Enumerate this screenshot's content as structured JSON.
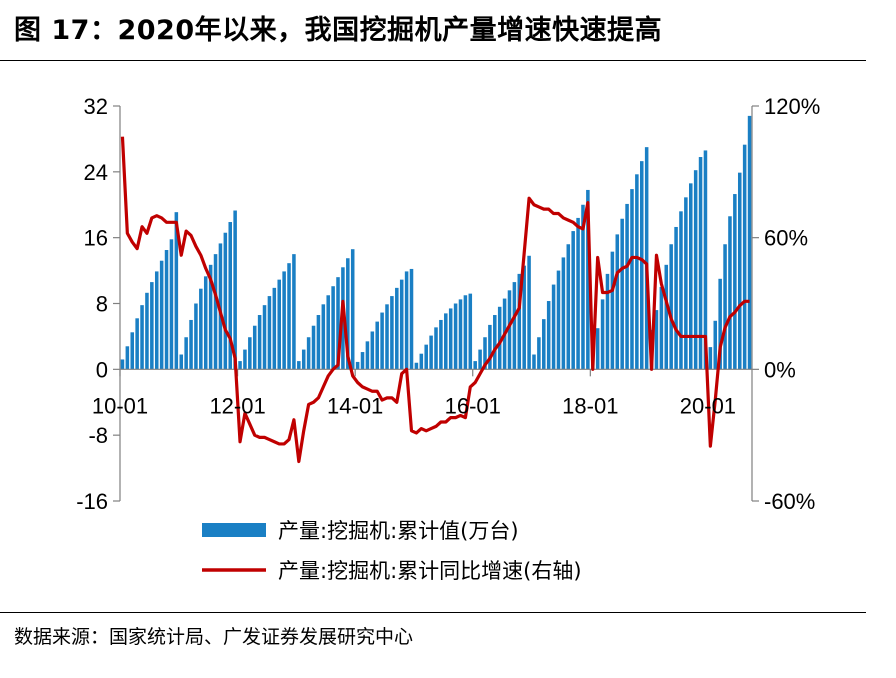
{
  "title": "图 17：2020年以来，我国挖掘机产量增速快速提高",
  "source": "数据来源：国家统计局、广发证券发展研究中心",
  "colors": {
    "bar": "#1a7fc4",
    "line": "#c00000",
    "axis": "#808080"
  },
  "chart_data": {
    "type": "bar+line",
    "x_tick_labels": [
      "10-01",
      "12-01",
      "14-01",
      "16-01",
      "18-01",
      "20-01"
    ],
    "left_axis": {
      "ylim": [
        -16,
        32
      ],
      "ticks": [
        -16,
        -8,
        0,
        8,
        16,
        24,
        32
      ],
      "tick_labels": [
        "-16",
        "-8",
        "0",
        "8",
        "16",
        "24",
        "32"
      ]
    },
    "right_axis": {
      "ylim": [
        -60,
        120
      ],
      "ticks": [
        -60,
        0,
        60,
        120
      ],
      "tick_labels": [
        "-60%",
        "0%",
        "60%",
        "120%"
      ]
    },
    "series": [
      {
        "name": "产量:挖掘机:累计值(万台)",
        "type": "bar",
        "axis": "left",
        "values": [
          1.2,
          2.8,
          4.5,
          6.2,
          7.8,
          9.3,
          10.6,
          11.9,
          13.2,
          14.5,
          15.8,
          19.1,
          1.8,
          3.9,
          6.0,
          8.0,
          9.8,
          11.3,
          12.7,
          14.0,
          15.3,
          16.6,
          17.9,
          19.3,
          1.0,
          2.4,
          3.9,
          5.3,
          6.6,
          7.8,
          8.9,
          9.9,
          10.9,
          11.9,
          12.9,
          14.0,
          1.0,
          2.4,
          3.9,
          5.3,
          6.6,
          7.9,
          9.0,
          10.1,
          11.2,
          12.4,
          13.5,
          14.6,
          0.9,
          2.1,
          3.4,
          4.6,
          5.8,
          6.9,
          7.9,
          8.9,
          9.9,
          10.9,
          11.9,
          12.2,
          0.8,
          1.9,
          3.0,
          4.1,
          5.1,
          6.0,
          6.8,
          7.4,
          8.0,
          8.5,
          9.0,
          9.2,
          1.0,
          2.4,
          3.9,
          5.4,
          6.6,
          7.6,
          8.6,
          9.6,
          10.6,
          11.6,
          12.6,
          13.8,
          1.8,
          3.9,
          6.1,
          8.3,
          10.3,
          12.0,
          13.6,
          15.2,
          16.8,
          18.4,
          20.0,
          21.8,
          2.0,
          5.0,
          8.5,
          11.6,
          14.3,
          16.4,
          18.3,
          20.1,
          21.9,
          23.7,
          25.3,
          27.0,
          4.8,
          7.2,
          10.0,
          12.7,
          15.2,
          17.3,
          19.2,
          20.9,
          22.6,
          24.2,
          25.8,
          26.6,
          2.7,
          5.9,
          11.0,
          15.2,
          18.6,
          21.3,
          23.9,
          27.3,
          30.8
        ]
      },
      {
        "name": "产量:挖掘机:累计同比增速(右轴)",
        "type": "line",
        "axis": "right",
        "values": [
          106,
          62,
          58,
          55,
          65,
          62,
          69,
          70,
          69,
          67,
          67,
          67,
          52,
          63,
          61,
          56,
          52,
          46,
          41,
          34,
          26,
          18,
          14,
          5,
          -33,
          -20,
          -25,
          -30,
          -31,
          -31,
          -32,
          -33,
          -34,
          -34,
          -32,
          -23,
          -42,
          -28,
          -16,
          -15,
          -13,
          -8,
          -3,
          0,
          2,
          31,
          6,
          -3,
          -6,
          -8,
          -9,
          -10,
          -10,
          -14,
          -13,
          -13,
          -15,
          -2,
          0,
          -28,
          -29,
          -27,
          -28,
          -27,
          -26,
          -24,
          -24,
          -22,
          -22,
          -21,
          -22,
          -8,
          -6,
          -2,
          2,
          5,
          9,
          12,
          16,
          20,
          24,
          28,
          53,
          78,
          75,
          74,
          73,
          73,
          71,
          71,
          69,
          68,
          67,
          65,
          64,
          76,
          0,
          51,
          35,
          35,
          36,
          44,
          46,
          47,
          51,
          51,
          50,
          48,
          0,
          52,
          39,
          31,
          23,
          18,
          15,
          15,
          15,
          15,
          15,
          15,
          -35,
          -14,
          10,
          19,
          24,
          26,
          29,
          31,
          31
        ]
      }
    ]
  }
}
